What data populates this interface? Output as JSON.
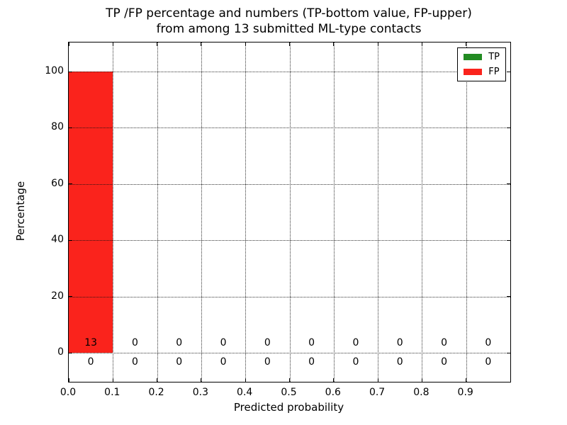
{
  "title": {
    "line1": "TP /FP percentage and numbers (TP-bottom value, FP-upper)",
    "line2": "from among 13 submitted ML-type contacts"
  },
  "x_axis": {
    "label": "Predicted probability",
    "tick_labels": [
      "0.0",
      "0.1",
      "0.2",
      "0.3",
      "0.4",
      "0.5",
      "0.6",
      "0.7",
      "0.8",
      "0.9"
    ]
  },
  "y_axis": {
    "label": "Percentage",
    "tick_labels": [
      "0",
      "20",
      "40",
      "60",
      "80",
      "100"
    ]
  },
  "legend": {
    "items": [
      {
        "label": "TP",
        "color": "#228b22"
      },
      {
        "label": "FP",
        "color": "#fa231c"
      }
    ]
  },
  "chart_data": {
    "type": "bar",
    "title": "TP /FP percentage and numbers (TP-bottom value, FP-upper) from among 13 submitted ML-type contacts",
    "xlabel": "Predicted probability",
    "ylabel": "Percentage",
    "xlim": [
      0.0,
      1.0
    ],
    "ylim": [
      -11,
      110
    ],
    "grid": true,
    "grid_style": "dotted",
    "legend_position": "upper right",
    "total_contacts": 13,
    "bins": {
      "starts": [
        0.0,
        0.1,
        0.2,
        0.3,
        0.4,
        0.5,
        0.6,
        0.7,
        0.8,
        0.9
      ],
      "width": 0.1
    },
    "x_ticks": [
      0.0,
      0.1,
      0.2,
      0.3,
      0.4,
      0.5,
      0.6,
      0.7,
      0.8,
      0.9
    ],
    "y_ticks": [
      0,
      20,
      40,
      60,
      80,
      100
    ],
    "series": [
      {
        "name": "TP",
        "color": "#228b22",
        "percent": [
          0,
          0,
          0,
          0,
          0,
          0,
          0,
          0,
          0,
          0
        ],
        "counts": [
          0,
          0,
          0,
          0,
          0,
          0,
          0,
          0,
          0,
          0
        ]
      },
      {
        "name": "FP",
        "color": "#fa231c",
        "percent": [
          100,
          0,
          0,
          0,
          0,
          0,
          0,
          0,
          0,
          0
        ],
        "counts": [
          13,
          0,
          0,
          0,
          0,
          0,
          0,
          0,
          0,
          0
        ]
      }
    ],
    "annotation_rows": {
      "upper_fp_counts": [
        13,
        0,
        0,
        0,
        0,
        0,
        0,
        0,
        0,
        0
      ],
      "lower_tp_counts": [
        0,
        0,
        0,
        0,
        0,
        0,
        0,
        0,
        0,
        0
      ]
    }
  }
}
